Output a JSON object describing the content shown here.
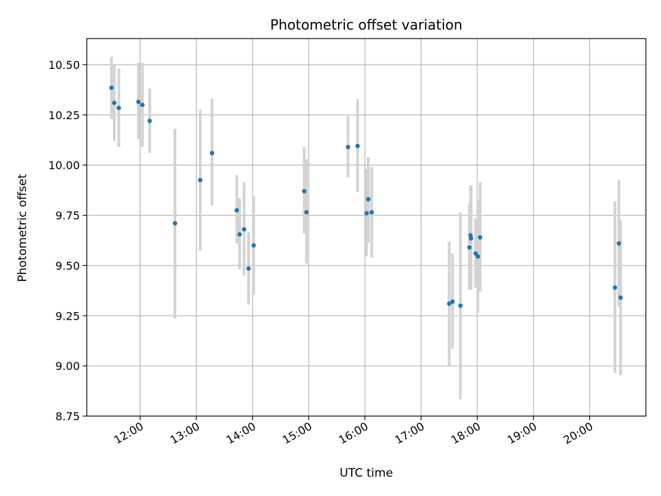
{
  "chart_data": {
    "type": "scatter",
    "title": "Photometric offset variation",
    "xlabel": "UTC time",
    "ylabel": "Photometric offset",
    "x_unit": "hours (UTC)",
    "xlim": [
      11.05,
      21.0
    ],
    "ylim": [
      8.75,
      10.63
    ],
    "grid": true,
    "x_ticks": [
      12,
      13,
      14,
      15,
      16,
      17,
      18,
      19,
      20
    ],
    "x_tick_labels": [
      "12:00",
      "13:00",
      "14:00",
      "15:00",
      "16:00",
      "17:00",
      "18:00",
      "19:00",
      "20:00"
    ],
    "y_ticks": [
      8.75,
      9.0,
      9.25,
      9.5,
      9.75,
      10.0,
      10.25,
      10.5
    ],
    "y_tick_labels": [
      "8.75",
      "9.00",
      "9.25",
      "9.50",
      "9.75",
      "10.00",
      "10.25",
      "10.50"
    ],
    "marker_color": "#1f77b4",
    "errorbar_color": "#d3d3d3",
    "points": [
      {
        "x": 11.49,
        "y": 10.385,
        "lo": 10.23,
        "hi": 10.54
      },
      {
        "x": 11.54,
        "y": 10.31,
        "lo": 10.12,
        "hi": 10.5
      },
      {
        "x": 11.62,
        "y": 10.285,
        "lo": 10.09,
        "hi": 10.48
      },
      {
        "x": 11.97,
        "y": 10.315,
        "lo": 10.13,
        "hi": 10.51
      },
      {
        "x": 12.04,
        "y": 10.3,
        "lo": 10.09,
        "hi": 10.51
      },
      {
        "x": 12.17,
        "y": 10.22,
        "lo": 10.06,
        "hi": 10.38
      },
      {
        "x": 12.62,
        "y": 9.71,
        "lo": 9.235,
        "hi": 10.18
      },
      {
        "x": 13.07,
        "y": 9.925,
        "lo": 9.575,
        "hi": 10.275
      },
      {
        "x": 13.28,
        "y": 10.06,
        "lo": 9.8,
        "hi": 10.33
      },
      {
        "x": 13.72,
        "y": 9.775,
        "lo": 9.61,
        "hi": 9.95
      },
      {
        "x": 13.77,
        "y": 9.655,
        "lo": 9.48,
        "hi": 9.835
      },
      {
        "x": 13.85,
        "y": 9.68,
        "lo": 9.45,
        "hi": 9.915
      },
      {
        "x": 13.93,
        "y": 9.485,
        "lo": 9.305,
        "hi": 9.665
      },
      {
        "x": 14.02,
        "y": 9.6,
        "lo": 9.355,
        "hi": 9.845
      },
      {
        "x": 14.92,
        "y": 9.87,
        "lo": 9.66,
        "hi": 10.09
      },
      {
        "x": 14.96,
        "y": 9.765,
        "lo": 9.51,
        "hi": 10.03
      },
      {
        "x": 15.7,
        "y": 10.09,
        "lo": 9.94,
        "hi": 10.245
      },
      {
        "x": 15.87,
        "y": 10.095,
        "lo": 9.865,
        "hi": 10.33
      },
      {
        "x": 16.03,
        "y": 9.76,
        "lo": 9.545,
        "hi": 9.98
      },
      {
        "x": 16.06,
        "y": 9.83,
        "lo": 9.615,
        "hi": 10.04
      },
      {
        "x": 16.12,
        "y": 9.765,
        "lo": 9.54,
        "hi": 9.99
      },
      {
        "x": 17.5,
        "y": 9.31,
        "lo": 9.0,
        "hi": 9.62
      },
      {
        "x": 17.56,
        "y": 9.32,
        "lo": 9.085,
        "hi": 9.56
      },
      {
        "x": 17.7,
        "y": 9.3,
        "lo": 8.835,
        "hi": 9.765
      },
      {
        "x": 17.86,
        "y": 9.59,
        "lo": 9.38,
        "hi": 9.805
      },
      {
        "x": 17.88,
        "y": 9.65,
        "lo": 9.395,
        "hi": 9.9
      },
      {
        "x": 17.89,
        "y": 9.635,
        "lo": 9.38,
        "hi": 9.89
      },
      {
        "x": 17.97,
        "y": 9.56,
        "lo": 9.39,
        "hi": 9.735
      },
      {
        "x": 18.01,
        "y": 9.545,
        "lo": 9.265,
        "hi": 9.825
      },
      {
        "x": 18.05,
        "y": 9.64,
        "lo": 9.37,
        "hi": 9.915
      },
      {
        "x": 20.45,
        "y": 9.39,
        "lo": 8.965,
        "hi": 9.82
      },
      {
        "x": 20.52,
        "y": 9.61,
        "lo": 9.295,
        "hi": 9.925
      },
      {
        "x": 20.55,
        "y": 9.34,
        "lo": 8.955,
        "hi": 9.725
      }
    ]
  }
}
